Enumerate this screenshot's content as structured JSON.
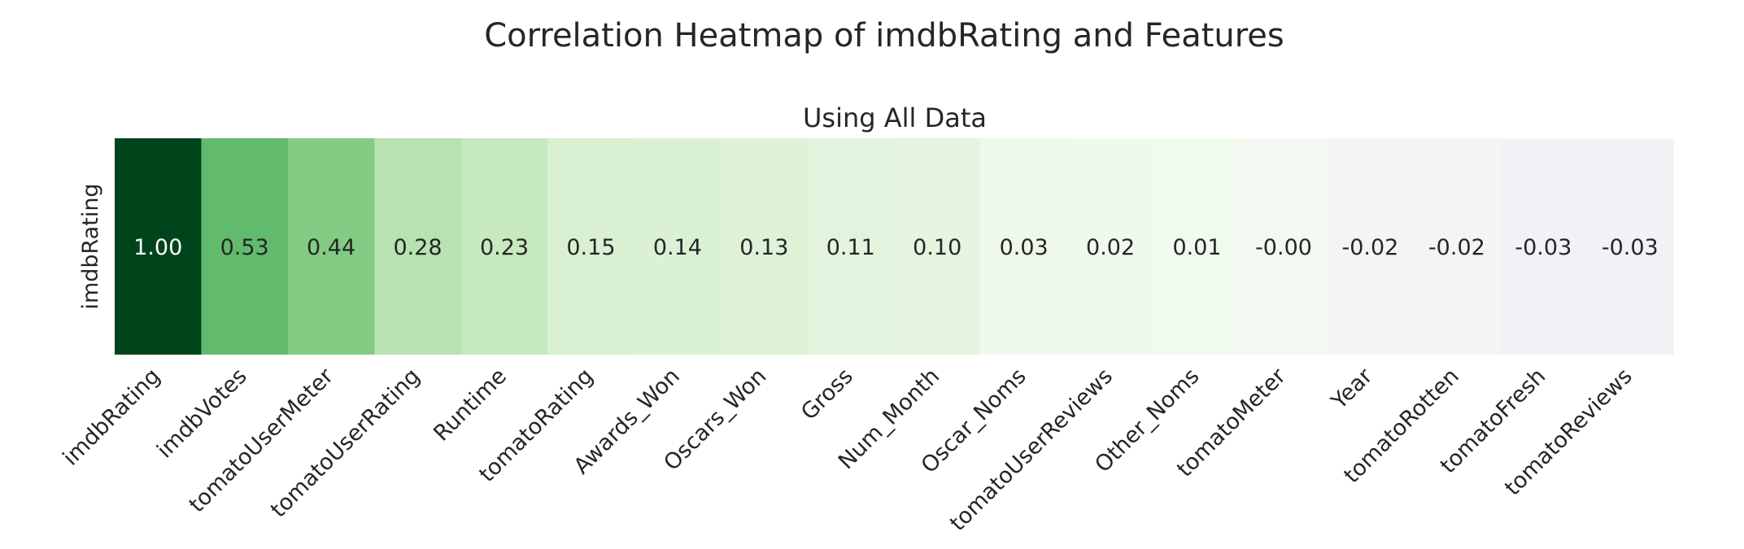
{
  "chart_data": {
    "type": "heatmap",
    "title": "Correlation Heatmap of imdbRating and Features",
    "subtitle": "Using All Data",
    "row_labels": [
      "imdbRating"
    ],
    "column_labels": [
      "imdbRating",
      "imdbVotes",
      "tomatoUserMeter",
      "tomatoUserRating",
      "Runtime",
      "tomatoRating",
      "Awards_Won",
      "Oscars_Won",
      "Gross",
      "Num_Month",
      "Oscar_Noms",
      "tomatoUserReviews",
      "Other_Noms",
      "tomatoMeter",
      "Year",
      "tomatoRotten",
      "tomatoFresh",
      "tomatoReviews"
    ],
    "values": [
      [
        1.0,
        0.53,
        0.44,
        0.28,
        0.23,
        0.15,
        0.14,
        0.13,
        0.11,
        0.1,
        0.03,
        0.02,
        0.01,
        -0.0,
        -0.02,
        -0.02,
        -0.03,
        -0.03
      ]
    ],
    "value_labels": [
      [
        "1.00",
        "0.53",
        "0.44",
        "0.28",
        "0.23",
        "0.15",
        "0.14",
        "0.13",
        "0.11",
        "0.10",
        "0.03",
        "0.02",
        "0.01",
        "-0.00",
        "-0.02",
        "-0.02",
        "-0.03",
        "-0.03"
      ]
    ],
    "colormap": "Greens",
    "colorbar": false
  }
}
